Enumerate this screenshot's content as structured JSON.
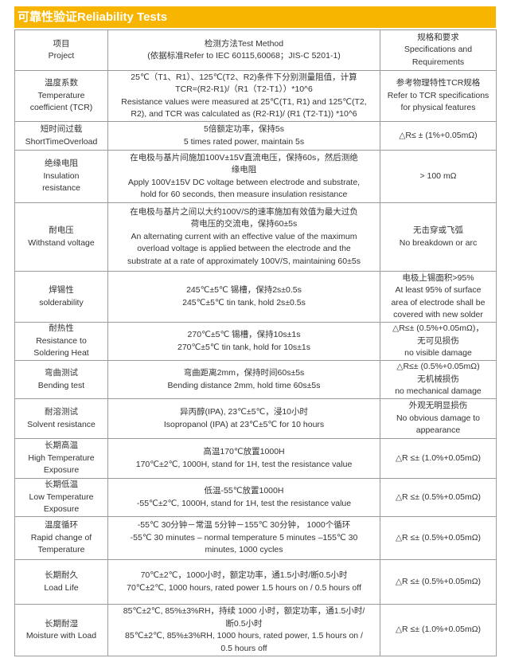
{
  "header": {
    "title": "可靠性验证Reliability Tests"
  },
  "table": {
    "rows": [
      [
        [
          "项目",
          "Project"
        ],
        [
          "检测方法Test Method",
          "(依据标准Refer to IEC 60115,60068；JIS-C 5201-1)"
        ],
        [
          "规格和要求",
          "Specifications and",
          "Requirements"
        ]
      ],
      [
        [
          "温度系数",
          "Temperature",
          "coefficient (TCR)"
        ],
        [
          "25℃（T1、R1）、125℃(T2、R2)条件下分别测量阻值，计算",
          "TCR=(R2-R1)/（R1（T2-T1））*10^6",
          "Resistance values were measured at 25℃(T1, R1) and 125℃(T2,",
          "R2), and TCR was calculated as (R2-R1)/ (R1 (T2-T1)) *10^6"
        ],
        [
          "参考物理特性TCR规格",
          "Refer to TCR specifications",
          "for physical features"
        ]
      ],
      [
        [
          "短时间过载",
          "ShortTimeOverload"
        ],
        [
          "5倍额定功率，保持5s",
          "5 times rated power, maintain 5s"
        ],
        [
          "△R≤ ± (1%+0.05mΩ)"
        ]
      ],
      [
        [
          "绝缘电阻",
          "Insulation",
          "resistance"
        ],
        [
          "在电极与基片间施加100V±15V直流电压，保持60s，然后测绝",
          "缘电阻",
          "Apply 100V±15V DC voltage between electrode and substrate,",
          "hold for 60 seconds, then measure insulation resistance"
        ],
        [
          "> 100 mΩ"
        ]
      ],
      [
        [
          "耐电压",
          "Withstand voltage"
        ],
        [
          "在电极与基片之间以大约100V/S的速率施加有效值为最大过负",
          "荷电压的交流电，保持60±5s",
          "An alternating current with an effective value of the maximum",
          "overload voltage is applied between the electrode and the",
          "substrate at a rate of approximately 100V/S, maintaining 60±5s"
        ],
        [
          "无击穿或飞弧",
          "No breakdown or arc"
        ]
      ],
      [
        [
          "焊锡性",
          "solderability"
        ],
        [
          "245℃±5℃ 锡槽，保持2s±0.5s",
          "245℃±5℃ tin tank, hold 2s±0.5s"
        ],
        [
          "电极上锡面积>95%",
          "At least 95% of surface",
          "area of electrode shall be",
          "covered with new solder"
        ]
      ],
      [
        [
          "耐热性",
          "Resistance to",
          "Soldering Heat"
        ],
        [
          "270℃±5℃ 锡槽，保持10s±1s",
          "270℃±5℃ tin tank, hold for 10s±1s"
        ],
        [
          "△R≤± (0.5%+0.05mΩ)，",
          "无可见损伤",
          "no visible damage"
        ]
      ],
      [
        [
          "弯曲测试",
          "Bending test"
        ],
        [
          "弯曲距离2mm，保持时间60s±5s",
          "Bending distance 2mm, hold time 60s±5s"
        ],
        [
          "△R≤± (0.5%+0.05mΩ)",
          "无机械损伤",
          "no mechanical damage"
        ]
      ],
      [
        [
          "耐溶测试",
          "Solvent resistance"
        ],
        [
          "异丙醇(IPA), 23℃±5℃，浸10小时",
          "Isopropanol (IPA) at 23℃±5℃ for 10 hours"
        ],
        [
          "外观无明显损伤",
          "No obvious damage to",
          "appearance"
        ]
      ],
      [
        [
          "长期高温",
          "High Temperature",
          "Exposure"
        ],
        [
          "高温170℃放置1000H",
          "170℃±2℃, 1000H, stand for 1H, test the resistance value"
        ],
        [
          "△R ≤± (1.0%+0.05mΩ)"
        ]
      ],
      [
        [
          "长期低温",
          "Low Temperature",
          "Exposure"
        ],
        [
          "低温-55℃放置1000H",
          "-55℃±2℃, 1000H, stand for 1H, test the resistance value"
        ],
        [
          "△R ≤± (0.5%+0.05mΩ)"
        ]
      ],
      [
        [
          "温度循环",
          "Rapid change of",
          "Temperature"
        ],
        [
          "-55℃ 30分钟－常温 5分钟－155℃ 30分钟， 1000个循环",
          "-55℃ 30 minutes – normal temperature 5 minutes –155℃ 30",
          "minutes, 1000 cycles"
        ],
        [
          "△R ≤± (0.5%+0.05mΩ)"
        ]
      ],
      [
        [
          "长期耐久",
          "Load Life"
        ],
        [
          "70℃±2℃，1000小时，额定功率，通1.5小时/断0.5小时",
          "70℃±2℃, 1000 hours, rated power 1.5 hours on / 0.5 hours off"
        ],
        [
          "△R ≤± (0.5%+0.05mΩ)"
        ]
      ],
      [
        [
          "长期耐湿",
          "Moisture with Load"
        ],
        [
          "85℃±2℃, 85%±3%RH，持续 1000 小时，额定功率，通1.5小时/",
          "断0.5小时",
          "85℃±2℃, 85%±3%RH, 1000 hours, rated power, 1.5 hours on /",
          "0.5 hours off"
        ],
        [
          "△R ≤± (1.0%+0.05mΩ)"
        ]
      ]
    ]
  }
}
